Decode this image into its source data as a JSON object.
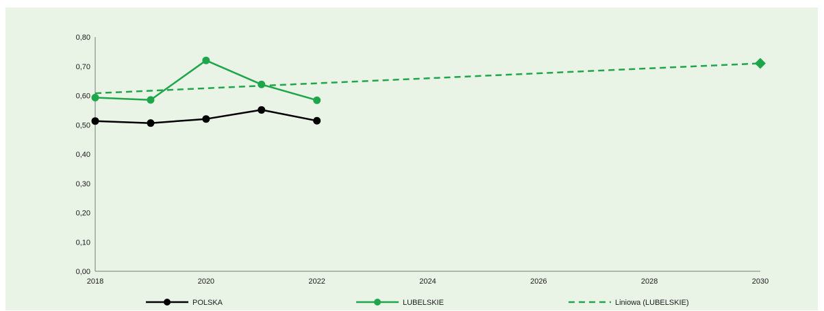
{
  "chart_data": {
    "type": "line",
    "title": "",
    "xlabel": "",
    "ylabel": "",
    "xlim": [
      2018,
      2030
    ],
    "ylim": [
      0,
      0.8
    ],
    "x_ticks": [
      "2018",
      "2020",
      "2022",
      "2024",
      "2026",
      "2028",
      "2030"
    ],
    "y_ticks": [
      "0,00",
      "0,10",
      "0,20",
      "0,30",
      "0,40",
      "0,50",
      "0,60",
      "0,70",
      "0,80"
    ],
    "grid": false,
    "legend_position": "bottom",
    "series": [
      {
        "name": "POLSKA",
        "style": "solid",
        "color": "#000000",
        "points": [
          {
            "x": 2018,
            "y": 0.513
          },
          {
            "x": 2019,
            "y": 0.506
          },
          {
            "x": 2020,
            "y": 0.52
          },
          {
            "x": 2021,
            "y": 0.551
          },
          {
            "x": 2022,
            "y": 0.514
          }
        ]
      },
      {
        "name": "LUBELSKIE",
        "style": "solid",
        "color": "#1fa64a",
        "points": [
          {
            "x": 2018,
            "y": 0.593
          },
          {
            "x": 2019,
            "y": 0.585
          },
          {
            "x": 2020,
            "y": 0.72
          },
          {
            "x": 2021,
            "y": 0.638
          },
          {
            "x": 2022,
            "y": 0.584
          }
        ]
      },
      {
        "name": "Liniowa (LUBELSKIE)",
        "style": "dashed",
        "color": "#1fa64a",
        "points": [
          {
            "x": 2018,
            "y": 0.608
          },
          {
            "x": 2030,
            "y": 0.71
          }
        ],
        "end_marker": "diamond"
      }
    ]
  },
  "colors": {
    "background": "#e9f3e6",
    "axis": "#7a7a7a"
  }
}
